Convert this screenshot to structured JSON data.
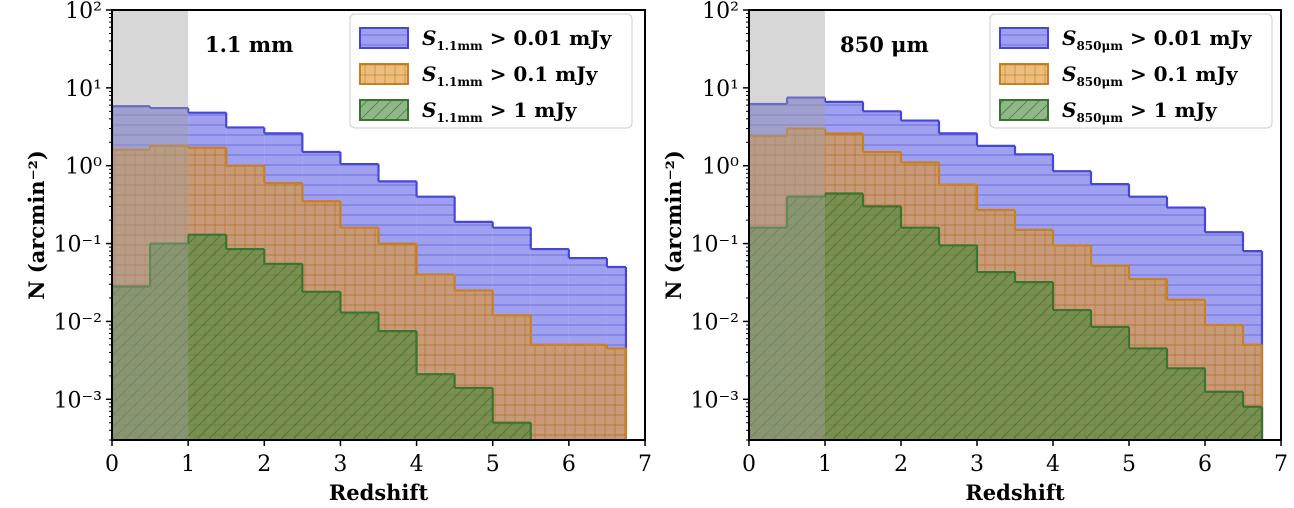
{
  "chart_data": [
    {
      "type": "histogram",
      "panel_label": "1.1 mm",
      "xlabel": "Redshift",
      "ylabel": "N (arcmin⁻²)",
      "xlim": [
        0,
        7
      ],
      "ylim": [
        0.0003,
        100
      ],
      "yscale": "log",
      "xticks": [
        "0",
        "1",
        "2",
        "3",
        "4",
        "5",
        "6",
        "7"
      ],
      "yticks": [
        "10²",
        "10¹",
        "10⁰",
        "10⁻¹",
        "10⁻²",
        "10⁻³"
      ],
      "legend_position": "top-right",
      "shaded_region": [
        0,
        1
      ],
      "bin_edges": [
        0,
        0.5,
        1.0,
        1.5,
        2.0,
        2.5,
        3.0,
        3.5,
        4.0,
        4.5,
        5.0,
        5.5,
        6.0,
        6.5,
        6.75
      ],
      "series": [
        {
          "name": "S_1.1mm > 0.01 mJy",
          "legend_main": "S",
          "legend_sub": "1.1mm",
          "legend_rest": " > 0.01 mJy",
          "color": "#6666e6",
          "edge_color": "#4646d8",
          "hatch": "horizontal",
          "values": [
            5.8,
            5.5,
            4.8,
            3.1,
            2.6,
            1.5,
            1.05,
            0.63,
            0.4,
            0.19,
            0.16,
            0.085,
            0.065,
            0.05
          ]
        },
        {
          "name": "S_1.1mm > 0.1 mJy",
          "legend_main": "S",
          "legend_sub": "1.1mm",
          "legend_rest": " > 0.1 mJy",
          "color": "#e0962f",
          "edge_color": "#c98020",
          "hatch": "grid",
          "values": [
            1.6,
            1.8,
            1.7,
            1.0,
            0.6,
            0.35,
            0.16,
            0.1,
            0.04,
            0.025,
            0.012,
            0.005,
            0.005,
            0.0045
          ]
        },
        {
          "name": "S_1.1mm > 1 mJy",
          "legend_main": "S",
          "legend_sub": "1.1mm",
          "legend_rest": " > 1 mJy",
          "color": "#4b8a3e",
          "edge_color": "#3a7530",
          "hatch": "diagonal",
          "values": [
            0.028,
            0.1,
            0.13,
            0.085,
            0.055,
            0.024,
            0.013,
            0.0075,
            0.0021,
            0.0014,
            0.0005,
            0,
            0,
            0
          ]
        }
      ]
    },
    {
      "type": "histogram",
      "panel_label": "850 μm",
      "xlabel": "Redshift",
      "ylabel": "N (arcmin⁻²)",
      "xlim": [
        0,
        7
      ],
      "ylim": [
        0.0003,
        100
      ],
      "yscale": "log",
      "xticks": [
        "0",
        "1",
        "2",
        "3",
        "4",
        "5",
        "6",
        "7"
      ],
      "yticks": [
        "10²",
        "10¹",
        "10⁰",
        "10⁻¹",
        "10⁻²",
        "10⁻³"
      ],
      "legend_position": "top-right",
      "shaded_region": [
        0,
        1
      ],
      "bin_edges": [
        0,
        0.5,
        1.0,
        1.5,
        2.0,
        2.5,
        3.0,
        3.5,
        4.0,
        4.5,
        5.0,
        5.5,
        6.0,
        6.5,
        6.75
      ],
      "series": [
        {
          "name": "S_850μm > 0.01 mJy",
          "legend_main": "S",
          "legend_sub": "850μm",
          "legend_rest": " > 0.01 mJy",
          "color": "#6666e6",
          "edge_color": "#4646d8",
          "hatch": "horizontal",
          "values": [
            6.2,
            7.5,
            6.6,
            5.0,
            3.8,
            2.6,
            1.8,
            1.4,
            0.85,
            0.58,
            0.4,
            0.29,
            0.14,
            0.08
          ]
        },
        {
          "name": "S_850μm > 0.1 mJy",
          "legend_main": "S",
          "legend_sub": "850μm",
          "legend_rest": " > 0.1 mJy",
          "color": "#e0962f",
          "edge_color": "#c98020",
          "hatch": "grid",
          "values": [
            2.4,
            3.0,
            2.6,
            1.5,
            1.1,
            0.57,
            0.27,
            0.15,
            0.095,
            0.052,
            0.035,
            0.019,
            0.009,
            0.005
          ]
        },
        {
          "name": "S_850μm > 1 mJy",
          "legend_main": "S",
          "legend_sub": "850μm",
          "legend_rest": " > 1 mJy",
          "color": "#4b8a3e",
          "edge_color": "#3a7530",
          "hatch": "diagonal",
          "values": [
            0.16,
            0.4,
            0.44,
            0.3,
            0.16,
            0.095,
            0.043,
            0.032,
            0.014,
            0.0085,
            0.0045,
            0.0025,
            0.00125,
            0.0008
          ]
        }
      ]
    }
  ]
}
